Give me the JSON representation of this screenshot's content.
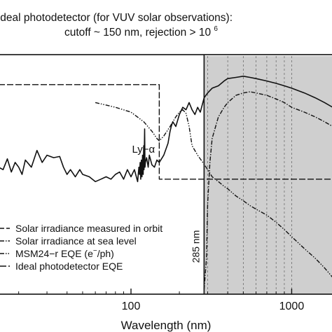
{
  "chart_data": {
    "type": "line",
    "title_lines": [
      "Ideal photodetector (for VUV solar observations):",
      "cutoff ~ 150 nm, rejection > 10",
      "6"
    ],
    "xlabel": "Wavelength (nm)",
    "xscale": "log",
    "xlim": [
      15,
      1800
    ],
    "x_ticks": [
      {
        "value": 100,
        "label": "100"
      },
      {
        "value": 1000,
        "label": "1000"
      }
    ],
    "ylim": [
      0,
      1
    ],
    "grid": "vertical dashed lines inside shaded band",
    "band": {
      "from": 285,
      "to": 1800,
      "color": "#cfcfcf",
      "label": "285 nm"
    },
    "annotations": [
      {
        "text": "Ly−α",
        "x": 121.6,
        "y": 0.6
      }
    ],
    "legend": {
      "placement": "bottom-left",
      "entries": [
        {
          "label": "Solar irradiance measured in orbit",
          "style": "dash"
        },
        {
          "label": "Solar irradiance at sea level",
          "style": "dashdot"
        },
        {
          "label": "MSM24−r EQE (e",
          "sup": "−",
          "label_end": "/ph)",
          "style": "dashdotdot"
        },
        {
          "label": "Ideal photodetector EQE",
          "style": "longdash"
        }
      ]
    },
    "series": [
      {
        "key": "ideal",
        "style": "longdash",
        "x": [
          15,
          150,
          150,
          1800
        ],
        "y": [
          0.875,
          0.875,
          0.48,
          0.48
        ]
      },
      {
        "key": "orbit",
        "style": "solid",
        "x": [
          15,
          16,
          17,
          18,
          19,
          20,
          21,
          22,
          24,
          26,
          28,
          30,
          33,
          36,
          38,
          40,
          42,
          45,
          48,
          50,
          55,
          60,
          65,
          70,
          75,
          80,
          85,
          90,
          95,
          100,
          105,
          110,
          112,
          113,
          114,
          115,
          116,
          117,
          118,
          119,
          120,
          120.5,
          121.6,
          122.2,
          123,
          125,
          128,
          130,
          135,
          140,
          145,
          150,
          160,
          170,
          175,
          178,
          182,
          190,
          200,
          210,
          220,
          230,
          240,
          250,
          260,
          270,
          285,
          300,
          320,
          350,
          380,
          400,
          450,
          500,
          550,
          600,
          700,
          800,
          900,
          1000,
          1200,
          1400,
          1600,
          1800
        ],
        "y": [
          0.53,
          0.52,
          0.565,
          0.51,
          0.55,
          0.53,
          0.5,
          0.56,
          0.53,
          0.6,
          0.55,
          0.58,
          0.57,
          0.575,
          0.53,
          0.5,
          0.52,
          0.49,
          0.52,
          0.5,
          0.49,
          0.47,
          0.48,
          0.49,
          0.48,
          0.5,
          0.51,
          0.48,
          0.52,
          0.49,
          0.52,
          0.47,
          0.53,
          0.5,
          0.55,
          0.48,
          0.56,
          0.49,
          0.58,
          0.5,
          0.62,
          0.52,
          0.69,
          0.53,
          0.55,
          0.57,
          0.53,
          0.58,
          0.54,
          0.53,
          0.56,
          0.55,
          0.58,
          0.63,
          0.68,
          0.7,
          0.72,
          0.7,
          0.75,
          0.78,
          0.77,
          0.8,
          0.77,
          0.75,
          0.78,
          0.76,
          0.82,
          0.84,
          0.86,
          0.87,
          0.89,
          0.9,
          0.905,
          0.91,
          0.905,
          0.9,
          0.89,
          0.88,
          0.87,
          0.86,
          0.84,
          0.82,
          0.8,
          0.78
        ]
      },
      {
        "key": "sea",
        "style": "dashdot",
        "x": [
          285,
          295,
          300,
          310,
          320,
          350,
          380,
          400,
          450,
          500,
          550,
          600,
          700,
          800,
          900,
          1000,
          1200,
          1400,
          1600,
          1800
        ],
        "y": [
          0.02,
          0.15,
          0.38,
          0.55,
          0.65,
          0.74,
          0.78,
          0.8,
          0.83,
          0.84,
          0.845,
          0.84,
          0.83,
          0.815,
          0.8,
          0.78,
          0.76,
          0.74,
          0.72,
          0.7
        ]
      },
      {
        "key": "msm",
        "style": "dashdotdot",
        "x": [
          60,
          80,
          100,
          120,
          135,
          145,
          150,
          160,
          175,
          190,
          200,
          210,
          220,
          230,
          240,
          260,
          280,
          300,
          320,
          350,
          380,
          400,
          450,
          500,
          550,
          600,
          700,
          800,
          900,
          1000,
          1200,
          1400,
          1600,
          1800
        ],
        "y": [
          0.8,
          0.78,
          0.76,
          0.72,
          0.68,
          0.65,
          0.64,
          0.66,
          0.7,
          0.74,
          0.76,
          0.77,
          0.755,
          0.7,
          0.62,
          0.58,
          0.55,
          0.52,
          0.49,
          0.47,
          0.45,
          0.44,
          0.41,
          0.39,
          0.37,
          0.355,
          0.33,
          0.3,
          0.27,
          0.24,
          0.19,
          0.15,
          0.11,
          0.07
        ]
      }
    ]
  }
}
